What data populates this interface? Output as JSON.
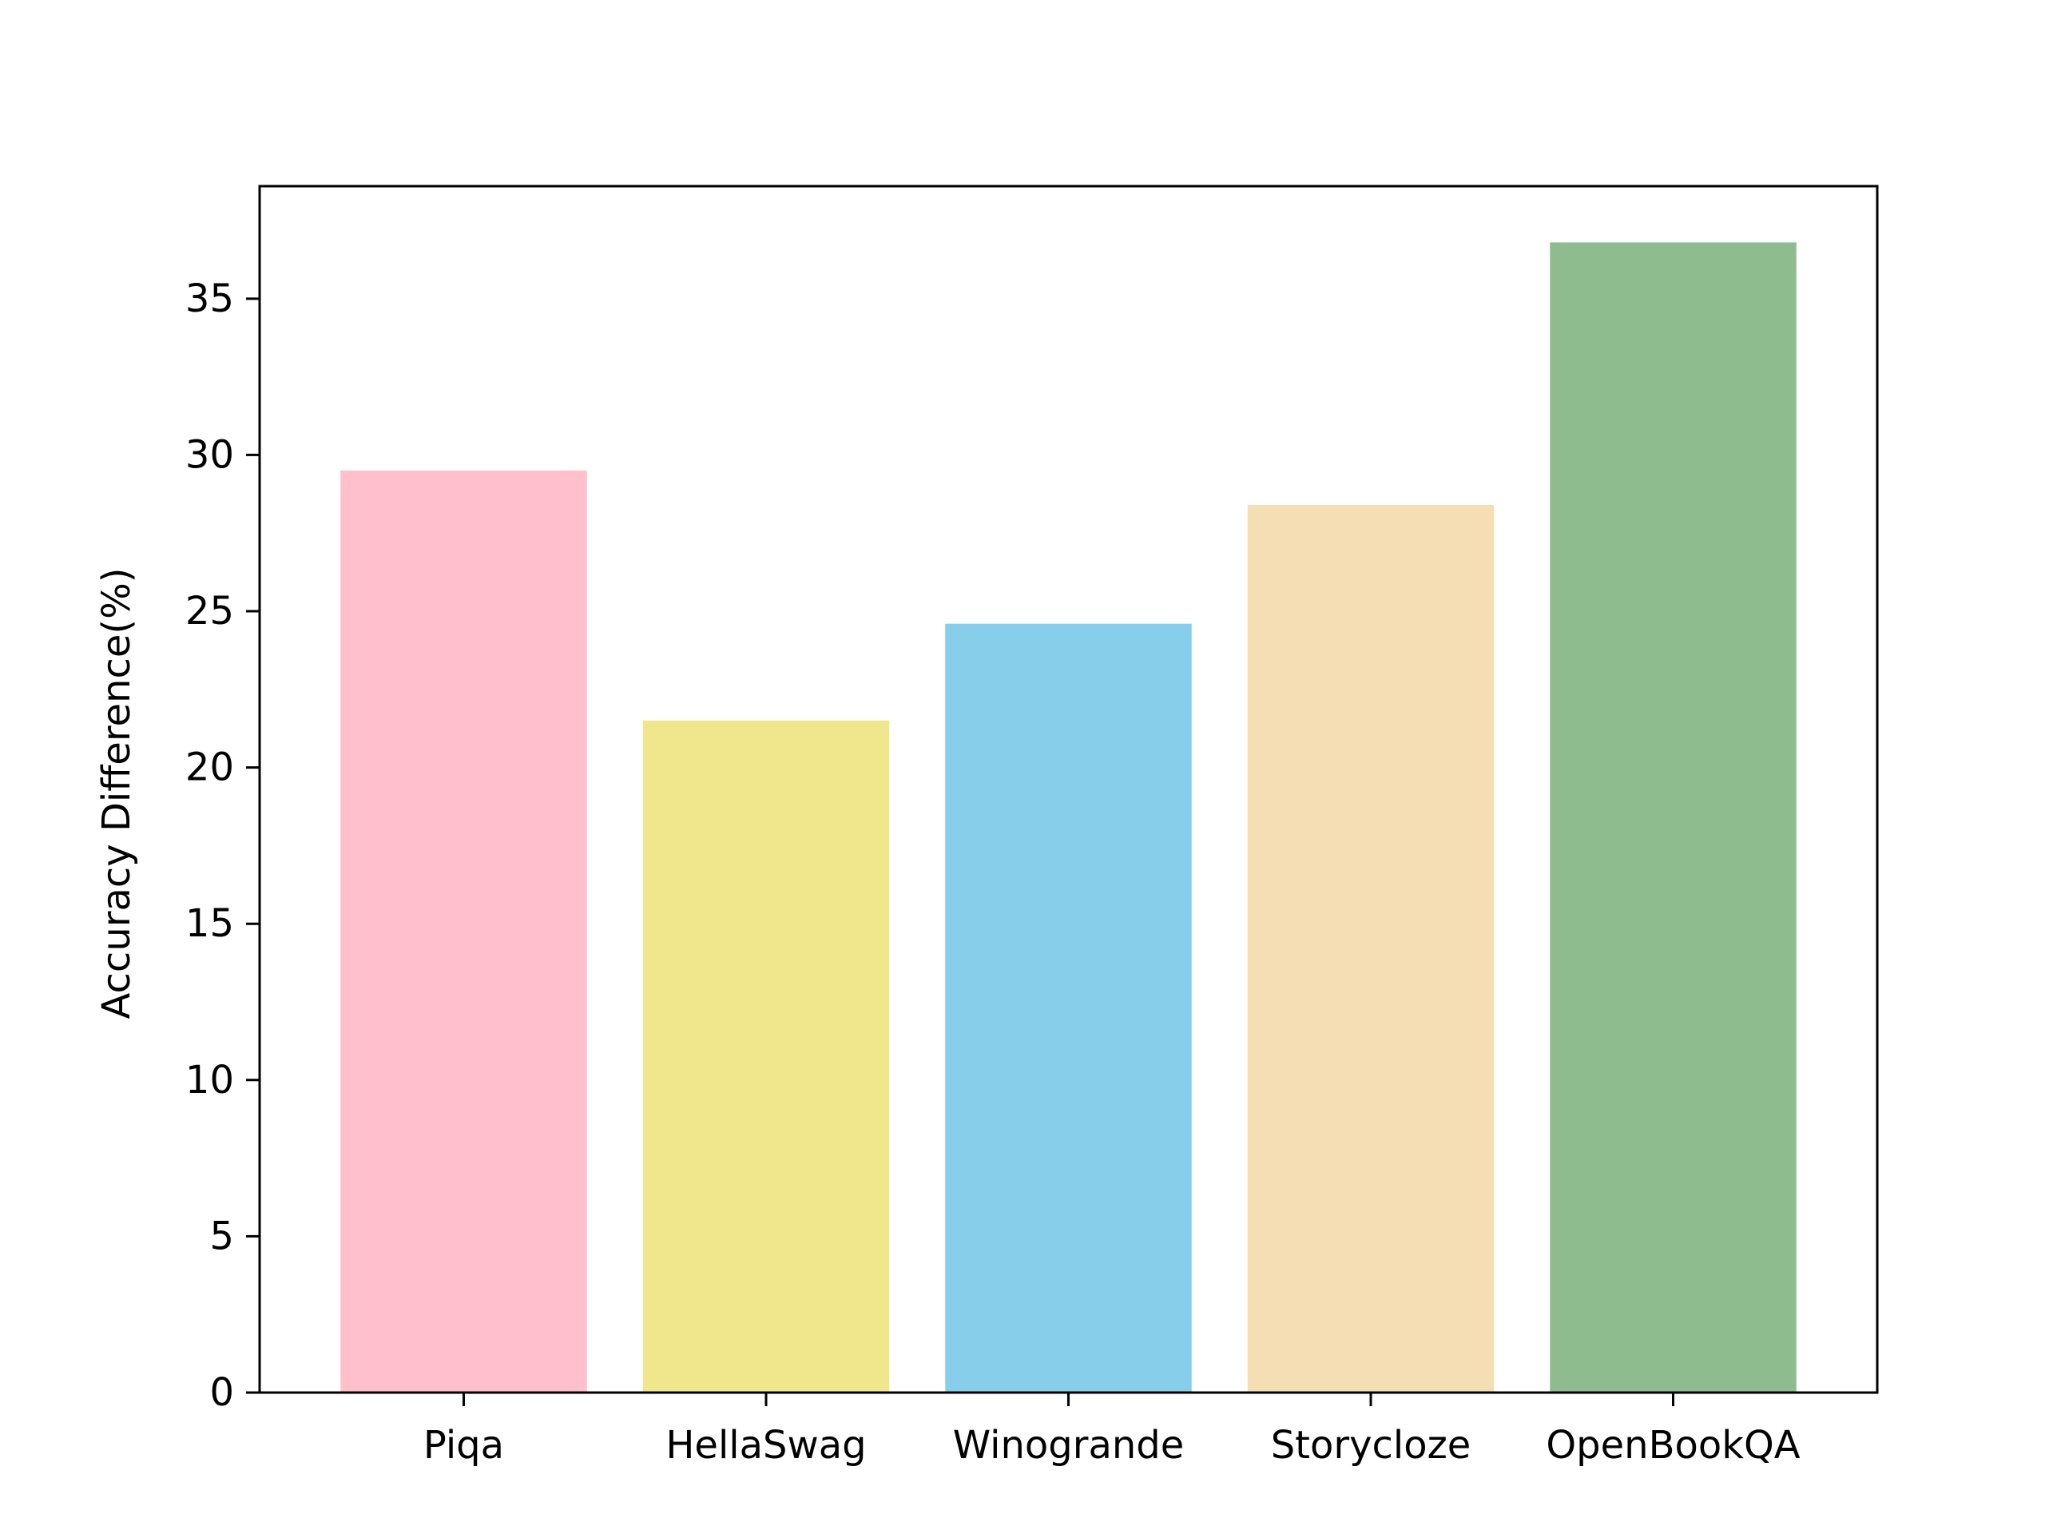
{
  "chart_data": {
    "type": "bar",
    "title": "",
    "xlabel": "",
    "ylabel": "Accuracy Difference(%)",
    "categories": [
      "Piqa",
      "HellaSwag",
      "Winogrande",
      "Storycloze",
      "OpenBookQA"
    ],
    "values": [
      29.5,
      21.5,
      24.6,
      28.4,
      36.8
    ],
    "colors": [
      "#ffc0cb",
      "#f0e68c",
      "#87ceeb",
      "#f5deb3",
      "#8fbc8f"
    ],
    "ylim": [
      0,
      38.6
    ],
    "yticks": [
      0,
      5,
      10,
      15,
      20,
      25,
      30,
      35
    ],
    "grid": false,
    "legend": "none"
  }
}
